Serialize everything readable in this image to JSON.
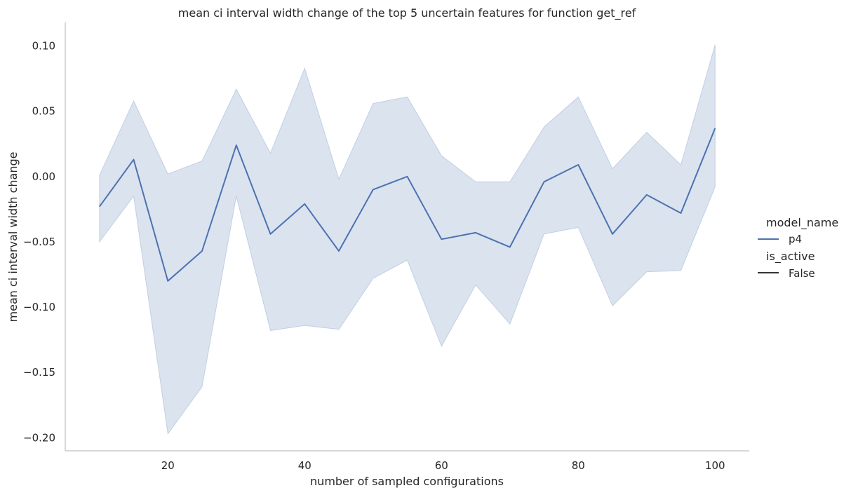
{
  "chart_data": {
    "type": "line",
    "title": "mean ci interval width change of the top 5 uncertain features for function get_ref",
    "xlabel": "number of sampled configurations",
    "ylabel": "mean ci interval width change",
    "xlim": [
      5,
      105
    ],
    "ylim": [
      -0.21,
      0.118
    ],
    "x_ticks": [
      20,
      40,
      60,
      80,
      100
    ],
    "x_tick_labels": [
      "20",
      "40",
      "60",
      "80",
      "100"
    ],
    "y_ticks": [
      0.1,
      0.05,
      0.0,
      -0.05,
      -0.1,
      -0.15,
      -0.2
    ],
    "y_tick_labels": [
      "0.10",
      "0.05",
      "0.00",
      "−0.05",
      "−0.10",
      "−0.15",
      "−0.20"
    ],
    "grid": false,
    "legend_placement": "right",
    "legend": {
      "title": "model_name",
      "entries": [
        {
          "label": "p4",
          "color": "#4c72b0"
        }
      ],
      "style_title": "is_active",
      "style_entries": [
        {
          "label": "False",
          "color": "#333333"
        }
      ]
    },
    "series": [
      {
        "name": "p4",
        "color": "#4c72b0",
        "x": [
          10,
          15,
          20,
          25,
          30,
          35,
          40,
          45,
          50,
          55,
          60,
          65,
          70,
          75,
          80,
          85,
          90,
          95,
          100
        ],
        "y": [
          -0.023,
          0.013,
          -0.08,
          -0.057,
          0.024,
          -0.044,
          -0.021,
          -0.057,
          -0.01,
          0.0,
          -0.048,
          -0.043,
          -0.054,
          -0.004,
          0.009,
          -0.044,
          -0.014,
          -0.028,
          0.037
        ],
        "ci_lower": [
          -0.05,
          -0.015,
          -0.197,
          -0.161,
          -0.015,
          -0.118,
          -0.114,
          -0.117,
          -0.078,
          -0.064,
          -0.13,
          -0.083,
          -0.113,
          -0.044,
          -0.039,
          -0.099,
          -0.073,
          -0.072,
          -0.008
        ],
        "ci_upper": [
          0.001,
          0.058,
          0.002,
          0.012,
          0.067,
          0.018,
          0.083,
          -0.002,
          0.056,
          0.061,
          0.016,
          -0.004,
          -0.004,
          0.038,
          0.061,
          0.006,
          0.034,
          0.009,
          0.101
        ]
      }
    ]
  }
}
